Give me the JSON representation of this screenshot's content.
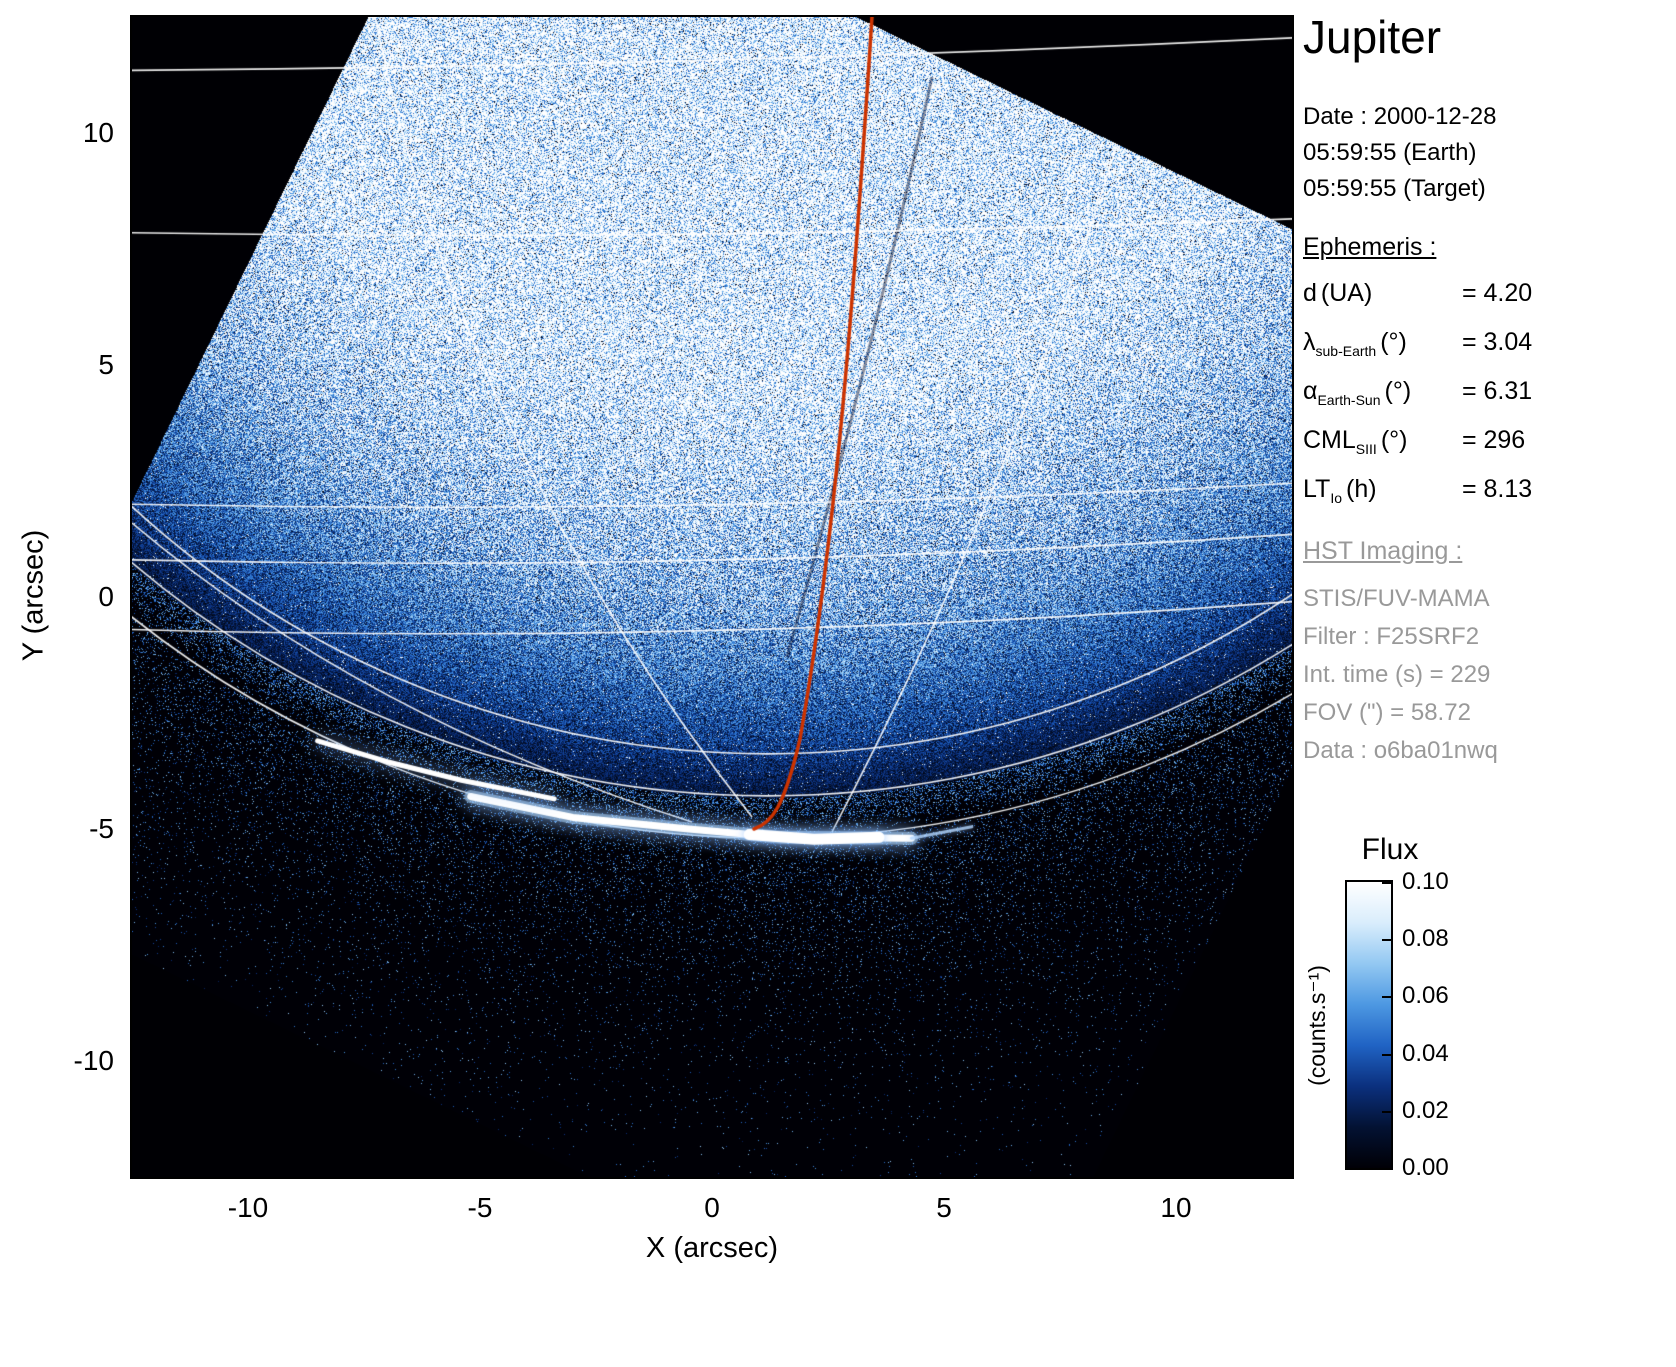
{
  "title": "Jupiter",
  "info": {
    "date": "Date : 2000-12-28",
    "time_earth": "05:59:55 (Earth)",
    "time_target": "05:59:55 (Target)",
    "ephemeris_heading": "Ephemeris :",
    "ephemeris": [
      {
        "symbol": "d",
        "sub": "",
        "unit": "(UA)",
        "value": "= 4.20"
      },
      {
        "symbol": "λ",
        "sub": "sub-Earth",
        "unit": "(°)",
        "value": "= 3.04"
      },
      {
        "symbol": "α",
        "sub": "Earth-Sun",
        "unit": "(°)",
        "value": "= 6.31"
      },
      {
        "symbol": "CML",
        "sub": "SIII",
        "unit": "(°)",
        "value": "= 296"
      },
      {
        "symbol": "LT",
        "sub": "Io",
        "unit": "(h)",
        "value": "= 8.13"
      }
    ],
    "hst_heading": "HST Imaging :",
    "hst_lines": [
      "STIS/FUV-MAMA",
      "Filter : F25SRF2",
      "Int. time (s) = 229",
      "FOV (\") = 58.72",
      "Data : o6ba01nwq"
    ]
  },
  "chart_data": {
    "type": "heatmap",
    "title": "Jupiter",
    "xlabel": "X (arcsec)",
    "ylabel": "Y (arcsec)",
    "xlim": [
      -12.5,
      12.5
    ],
    "ylim": [
      -12.5,
      12.5
    ],
    "xticks": [
      -10,
      -5,
      0,
      5,
      10
    ],
    "yticks": [
      10,
      5,
      0,
      -5,
      -10
    ],
    "grid": false,
    "description": "HST/STIS far-UV flux image of Jupiter: blue-white log-stretched disk emission inside a rotated detector footprint on black sky, white planetocentric graticule lines, bright southern auroral oval arc near y = -5 arcsec, and an orange Io magnetic footprint track running from the top of the frame down to the auroral region",
    "colorbar": {
      "title": "Flux",
      "units": "(counts.s⁻¹)",
      "tick_labels": [
        "0.10",
        "0.08",
        "0.06",
        "0.04",
        "0.02",
        "0.00"
      ],
      "range": [
        0.0,
        0.1
      ],
      "gradient": [
        "#ffffff",
        "#d9edfc",
        "#93c8f2",
        "#4d98e2",
        "#2063c4",
        "#0b307e",
        "#031233",
        "#000006"
      ]
    },
    "overlays": {
      "graticule_color": "#ffffff",
      "io_track_color": "#cc3300",
      "aurora_color": "#ffffff",
      "io_track_top_arcsec": [
        3.4,
        12.6
      ],
      "io_track_end_arcsec": [
        1.0,
        -4.8
      ]
    }
  }
}
